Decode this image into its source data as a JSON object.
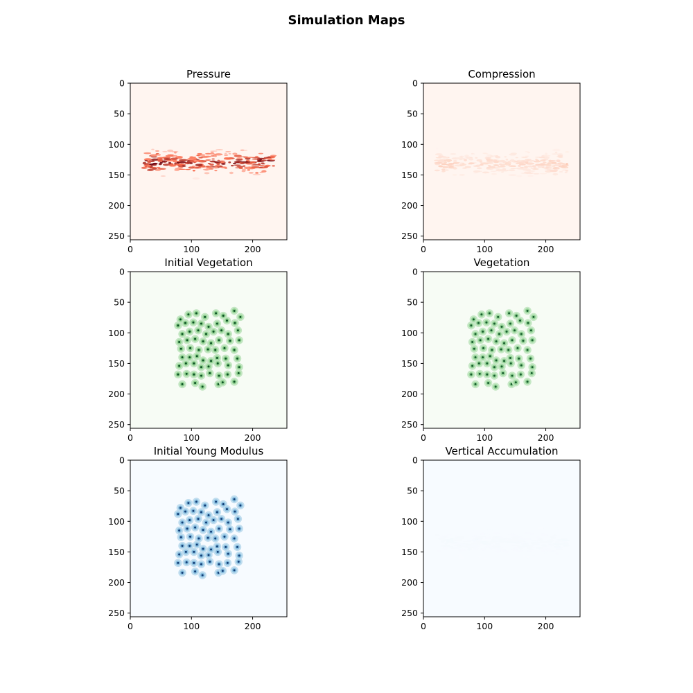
{
  "figure": {
    "title": "Simulation Maps"
  },
  "chart_data": [
    {
      "type": "heatmap",
      "title": "Pressure",
      "colormap": "Reds",
      "colors": {
        "low": "#fff5f0",
        "mid": "#fb6a4a",
        "high": "#67000d"
      },
      "grid_size": [
        256,
        256
      ],
      "xlim": [
        0,
        256
      ],
      "ylim": [
        256,
        0
      ],
      "xticks": [
        0,
        100,
        200
      ],
      "yticks": [
        0,
        50,
        100,
        150,
        200,
        250
      ],
      "xlabel": "",
      "ylabel": "",
      "grid": false,
      "pattern": "horizontal band",
      "band": {
        "x_range": [
          22,
          235
        ],
        "y_range": [
          108,
          162
        ],
        "center_y": 130,
        "peak": 1.0
      }
    },
    {
      "type": "heatmap",
      "title": "Compression",
      "colormap": "Reds",
      "colors": {
        "low": "#fff5f0",
        "mid": "#fcbba1",
        "high": "#fb6a4a"
      },
      "grid_size": [
        256,
        256
      ],
      "xlim": [
        0,
        256
      ],
      "ylim": [
        256,
        0
      ],
      "xticks": [
        0,
        100,
        200
      ],
      "yticks": [
        0,
        50,
        100,
        150,
        200,
        250
      ],
      "xlabel": "",
      "ylabel": "",
      "grid": false,
      "pattern": "horizontal band",
      "band": {
        "x_range": [
          22,
          235
        ],
        "y_range": [
          108,
          162
        ],
        "center_y": 132,
        "peak": 0.3
      }
    },
    {
      "type": "heatmap",
      "title": "Initial Vegetation",
      "colormap": "Greens",
      "colors": {
        "low": "#f7fcf5",
        "mid": "#74c476",
        "high": "#00441b"
      },
      "grid_size": [
        256,
        256
      ],
      "xlim": [
        0,
        256
      ],
      "ylim": [
        256,
        0
      ],
      "xticks": [
        0,
        100,
        200
      ],
      "yticks": [
        0,
        50,
        100,
        150,
        200,
        250
      ],
      "xlabel": "",
      "ylabel": "",
      "grid": false,
      "pattern": "plant patches",
      "patch_intensity": 1.0
    },
    {
      "type": "heatmap",
      "title": "Vegetation",
      "colormap": "Greens",
      "colors": {
        "low": "#f7fcf5",
        "mid": "#74c476",
        "high": "#00441b"
      },
      "grid_size": [
        256,
        256
      ],
      "xlim": [
        0,
        256
      ],
      "ylim": [
        256,
        0
      ],
      "xticks": [
        0,
        100,
        200
      ],
      "yticks": [
        0,
        50,
        100,
        150,
        200,
        250
      ],
      "xlabel": "",
      "ylabel": "",
      "grid": false,
      "pattern": "plant patches",
      "patch_intensity": 0.95
    },
    {
      "type": "heatmap",
      "title": "Initial Young Modulus",
      "colormap": "Blues",
      "colors": {
        "low": "#f7fbff",
        "mid": "#6baed6",
        "high": "#08306b"
      },
      "grid_size": [
        256,
        256
      ],
      "xlim": [
        0,
        256
      ],
      "ylim": [
        256,
        0
      ],
      "xticks": [
        0,
        100,
        200
      ],
      "yticks": [
        0,
        50,
        100,
        150,
        200,
        250
      ],
      "xlabel": "",
      "ylabel": "",
      "grid": false,
      "pattern": "plant patches",
      "patch_intensity": 1.0
    },
    {
      "type": "heatmap",
      "title": "Vertical Accumulation",
      "colormap": "Blues",
      "colors": {
        "low": "#f7fbff",
        "mid": "#deebf7",
        "high": "#c6dbef"
      },
      "grid_size": [
        256,
        256
      ],
      "xlim": [
        0,
        256
      ],
      "ylim": [
        256,
        0
      ],
      "xticks": [
        0,
        100,
        200
      ],
      "yticks": [
        0,
        50,
        100,
        150,
        200,
        250
      ],
      "xlabel": "",
      "ylabel": "",
      "grid": false,
      "pattern": "horizontal band",
      "band": {
        "x_range": [
          22,
          235
        ],
        "y_range": [
          110,
          165
        ],
        "center_y": 135,
        "peak": 0.06
      }
    }
  ],
  "plant_centers": [
    [
      82,
      78
    ],
    [
      95,
      70
    ],
    [
      108,
      68
    ],
    [
      122,
      74
    ],
    [
      140,
      68
    ],
    [
      152,
      72
    ],
    [
      170,
      64
    ],
    [
      180,
      74
    ],
    [
      78,
      88
    ],
    [
      90,
      84
    ],
    [
      103,
      83
    ],
    [
      116,
      85
    ],
    [
      128,
      90
    ],
    [
      142,
      85
    ],
    [
      158,
      80
    ],
    [
      171,
      84
    ],
    [
      85,
      102
    ],
    [
      97,
      98
    ],
    [
      111,
      96
    ],
    [
      124,
      102
    ],
    [
      136,
      98
    ],
    [
      149,
      96
    ],
    [
      160,
      102
    ],
    [
      176,
      96
    ],
    [
      80,
      115
    ],
    [
      93,
      112
    ],
    [
      106,
      110
    ],
    [
      119,
      114
    ],
    [
      132,
      117
    ],
    [
      145,
      112
    ],
    [
      163,
      113
    ],
    [
      178,
      112
    ],
    [
      83,
      126
    ],
    [
      98,
      125
    ],
    [
      112,
      128
    ],
    [
      127,
      127
    ],
    [
      139,
      128
    ],
    [
      154,
      125
    ],
    [
      170,
      128
    ],
    [
      85,
      140
    ],
    [
      97,
      140
    ],
    [
      109,
      138
    ],
    [
      119,
      145
    ],
    [
      132,
      146
    ],
    [
      142,
      141
    ],
    [
      156,
      142
    ],
    [
      175,
      142
    ],
    [
      80,
      154
    ],
    [
      91,
      150
    ],
    [
      104,
      150
    ],
    [
      116,
      156
    ],
    [
      128,
      155
    ],
    [
      143,
      150
    ],
    [
      160,
      153
    ],
    [
      178,
      156
    ],
    [
      78,
      168
    ],
    [
      92,
      167
    ],
    [
      104,
      168
    ],
    [
      116,
      170
    ],
    [
      130,
      166
    ],
    [
      145,
      170
    ],
    [
      159,
      168
    ],
    [
      177,
      166
    ],
    [
      85,
      184
    ],
    [
      106,
      182
    ],
    [
      118,
      188
    ],
    [
      144,
      184
    ],
    [
      151,
      181
    ],
    [
      170,
      180
    ]
  ]
}
